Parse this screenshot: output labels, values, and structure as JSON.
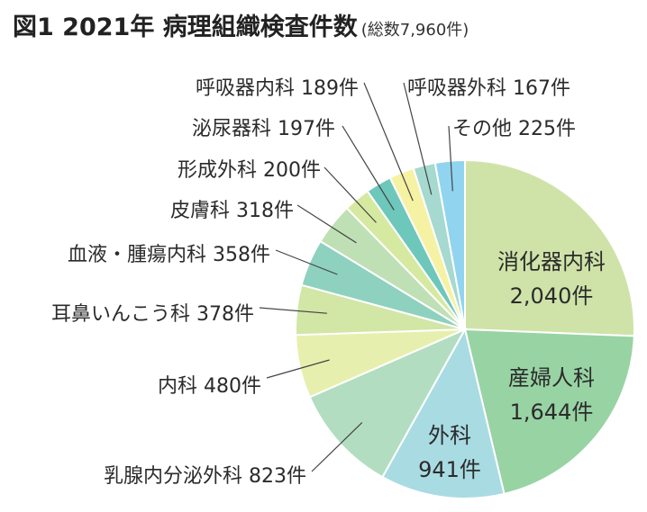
{
  "title": "図1 2021年 病理組織検査件数",
  "subtitle": "(総数7,960件)",
  "chart_data": {
    "type": "pie",
    "title": "図1 2021年 病理組織検査件数",
    "subtitle": "(総数7,960件)",
    "total": 7960,
    "unit": "件",
    "slices": [
      {
        "label": "消化器内科",
        "value": 2040,
        "display": "2,040件",
        "color": "#cfe3a9"
      },
      {
        "label": "産婦人科",
        "value": 1644,
        "display": "1,644件",
        "color": "#98d3a4"
      },
      {
        "label": "外科",
        "value": 941,
        "display": "941件",
        "color": "#a9dbe3"
      },
      {
        "label": "乳腺内分泌外科",
        "value": 823,
        "display": "823件",
        "color": "#b3ddc0"
      },
      {
        "label": "内科",
        "value": 480,
        "display": "480件",
        "color": "#e7efae"
      },
      {
        "label": "耳鼻いんこう科",
        "value": 378,
        "display": "378件",
        "color": "#d2e6a6"
      },
      {
        "label": "血液・腫瘍内科",
        "value": 358,
        "display": "358件",
        "color": "#8fd1bf"
      },
      {
        "label": "皮膚科",
        "value": 318,
        "display": "318件",
        "color": "#bfe0b5"
      },
      {
        "label": "形成外科",
        "value": 200,
        "display": "200件",
        "color": "#d6e9a1"
      },
      {
        "label": "泌尿器科",
        "value": 197,
        "display": "197件",
        "color": "#6ec7bb"
      },
      {
        "label": "呼吸器内科",
        "value": 189,
        "display": "189件",
        "color": "#f5f2a3"
      },
      {
        "label": "呼吸器外科",
        "value": 167,
        "display": "167件",
        "color": "#a6d9cf"
      },
      {
        "label": "その他",
        "value": 225,
        "display": "225件",
        "color": "#91d4ef"
      }
    ]
  }
}
